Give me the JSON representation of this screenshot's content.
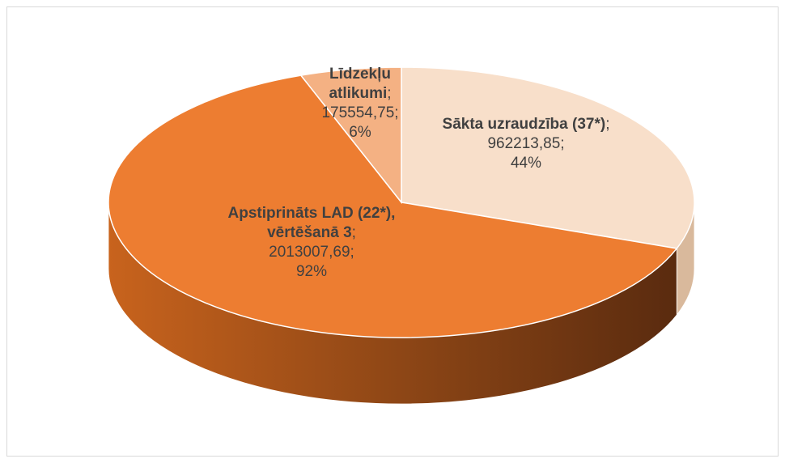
{
  "chart_data": {
    "type": "pie3d",
    "categories": [
      "Sākta uzraudzība (37*)",
      "Apstiprināts LAD (22*), vērtēšanā 3",
      "Līdzekļu atlikumi"
    ],
    "label_separator": ";",
    "values": [
      962213.85,
      2013007.69,
      175554.75
    ],
    "value_labels": [
      "962213,85;",
      "2013007,69;",
      "175554,75;"
    ],
    "percents": [
      44,
      92,
      6
    ],
    "percent_labels": [
      "44%",
      "92%",
      "6%"
    ],
    "colors": [
      "#f8dfca",
      "#ed7d31",
      "#f4b183"
    ],
    "side_colors": [
      "#d9b99c",
      "#8a4416",
      "#c98a5c"
    ]
  }
}
